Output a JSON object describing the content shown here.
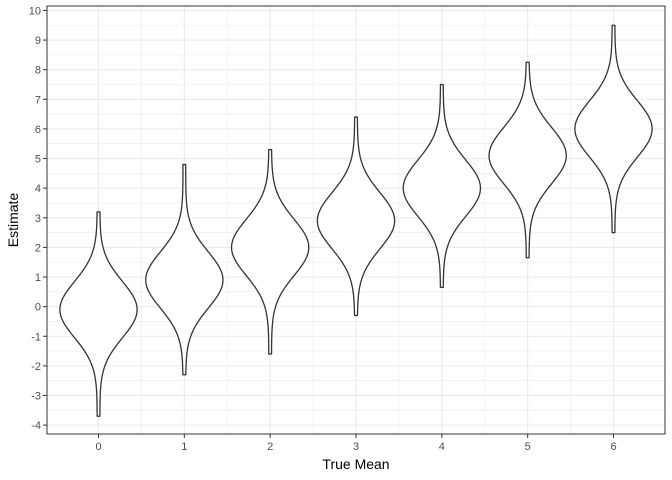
{
  "chart_data": {
    "type": "violin",
    "xlabel": "True Mean",
    "ylabel": "Estimate",
    "categories": [
      "0",
      "1",
      "2",
      "3",
      "4",
      "5",
      "6"
    ],
    "x": [
      0,
      1,
      2,
      3,
      4,
      5,
      6
    ],
    "y_ticks": [
      -4,
      -3,
      -2,
      -1,
      0,
      1,
      2,
      3,
      4,
      5,
      6,
      7,
      8,
      9,
      10
    ],
    "ylim": [
      -4.3,
      10.15
    ],
    "xlim": [
      -0.6,
      6.6
    ],
    "grid": true,
    "violins": [
      {
        "category": "0",
        "min": -3.7,
        "max": 3.2,
        "mode": -0.1
      },
      {
        "category": "1",
        "min": -2.3,
        "max": 4.8,
        "mode": 0.9
      },
      {
        "category": "2",
        "min": -1.6,
        "max": 5.3,
        "mode": 2.0
      },
      {
        "category": "3",
        "min": -0.3,
        "max": 6.4,
        "mode": 2.9
      },
      {
        "category": "4",
        "min": 0.65,
        "max": 7.5,
        "mode": 4.0
      },
      {
        "category": "5",
        "min": 1.65,
        "max": 8.25,
        "mode": 5.1
      },
      {
        "category": "6",
        "min": 2.5,
        "max": 9.5,
        "mode": 6.0
      }
    ],
    "colors": {
      "outline": "#333333",
      "grid": "#ebebeb",
      "panel_border": "#333333",
      "background": "#ffffff"
    }
  }
}
